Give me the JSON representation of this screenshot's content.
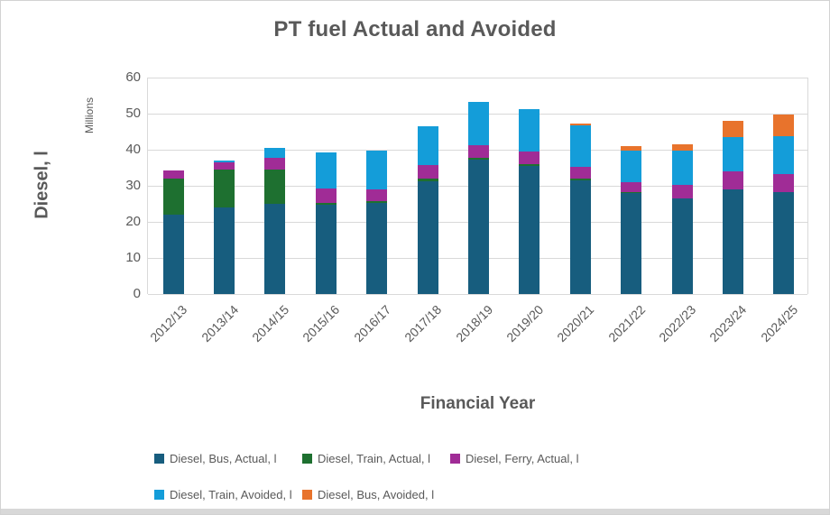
{
  "chart": {
    "title": "PT fuel Actual and Avoided",
    "y_axis": {
      "label": "Diesel, l",
      "units": "Millions",
      "ticks": [
        0,
        10,
        20,
        30,
        40,
        50,
        60
      ]
    },
    "x_axis": {
      "label": "Financial Year"
    }
  },
  "chart_data": {
    "type": "bar",
    "stacked": true,
    "title": "PT fuel Actual and Avoided",
    "xlabel": "Financial Year",
    "ylabel": "Diesel, l",
    "y_units": "Millions",
    "ylim": [
      0,
      60
    ],
    "grid": true,
    "legend_position": "bottom",
    "categories": [
      "2012/13",
      "2013/14",
      "2014/15",
      "2015/16",
      "2016/17",
      "2017/18",
      "2018/19",
      "2019/20",
      "2020/21",
      "2021/22",
      "2022/23",
      "2023/24",
      "2024/25"
    ],
    "series": [
      {
        "name": "Diesel, Bus, Actual, l",
        "color": "#175d7e",
        "values": [
          22.0,
          24.0,
          25.1,
          24.7,
          25.2,
          31.3,
          37.2,
          35.5,
          31.5,
          27.9,
          26.5,
          29.0,
          28.2
        ]
      },
      {
        "name": "Diesel, Train, Actual, l",
        "color": "#1e7030",
        "values": [
          10.0,
          10.4,
          9.4,
          0.6,
          0.6,
          0.6,
          0.6,
          0.5,
          0.5,
          0.4,
          0,
          0,
          0
        ]
      },
      {
        "name": "Diesel, Ferry, Actual, l",
        "color": "#a02c96",
        "values": [
          2.2,
          2.2,
          3.2,
          3.9,
          3.3,
          3.9,
          3.5,
          3.4,
          3.2,
          2.7,
          3.7,
          4.9,
          5.0
        ]
      },
      {
        "name": "Diesel, Train, Avoided, l",
        "color": "#149dd9",
        "values": [
          0,
          0.4,
          2.7,
          10.0,
          10.6,
          10.8,
          11.9,
          11.9,
          11.6,
          8.8,
          9.6,
          9.6,
          10.6
        ]
      },
      {
        "name": "Diesel, Bus, Avoided, l",
        "color": "#e8732c",
        "values": [
          0,
          0,
          0,
          0,
          0,
          0,
          0,
          0,
          0.5,
          1.2,
          1.7,
          4.4,
          5.9
        ]
      }
    ]
  },
  "colors": {
    "text": "#595959",
    "gridline": "#d9d9d9",
    "frame_border": "#d2d2d2",
    "bottom_strip": "#d8d8d8"
  }
}
